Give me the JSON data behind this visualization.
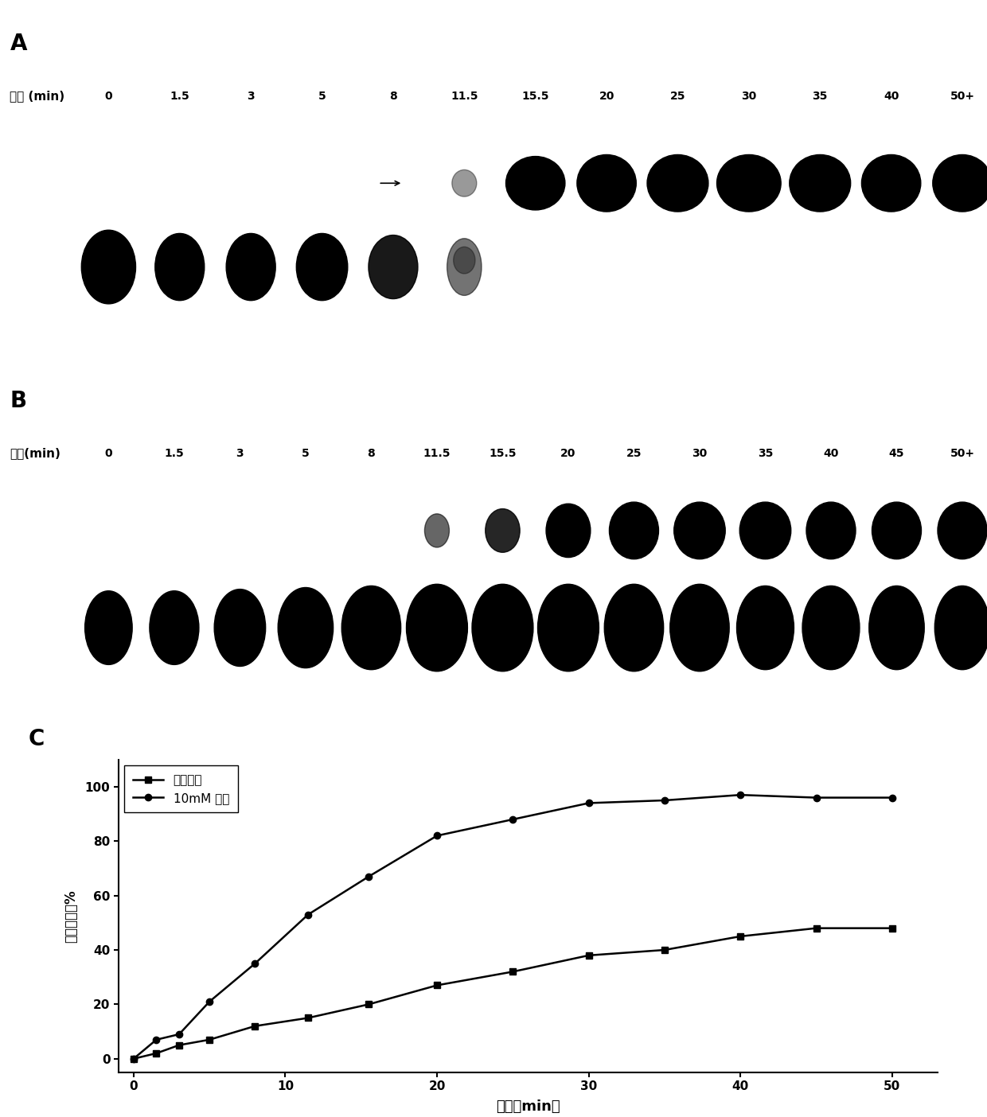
{
  "panel_A_label": "A",
  "panel_B_label": "B",
  "panel_C_label": "C",
  "panel_A_xlabel": "时间 (min)",
  "panel_B_xlabel": "时间(min)",
  "panel_C_xlabel": "时间（min）",
  "panel_C_ylabel": "转化百分率%",
  "line1_label": "不加精胺",
  "line2_label": "10mM 精胺",
  "panel_A_timepoints": [
    "0",
    "1.5",
    "3",
    "5",
    "8",
    "11.5",
    "15.5",
    "20",
    "25",
    "30",
    "35",
    "40",
    "50+"
  ],
  "panel_B_timepoints": [
    "0",
    "1.5",
    "3",
    "5",
    "8",
    "11.5",
    "15.5",
    "20",
    "25",
    "30",
    "35",
    "40",
    "45",
    "50+"
  ],
  "line1_x": [
    0,
    1.5,
    3,
    5,
    8,
    11.5,
    15.5,
    20,
    25,
    30,
    35,
    40,
    45,
    50
  ],
  "line1_y": [
    0,
    2,
    5,
    7,
    12,
    15,
    20,
    27,
    32,
    38,
    40,
    45,
    48,
    48
  ],
  "line2_x": [
    0,
    1.5,
    3,
    5,
    8,
    11.5,
    15.5,
    20,
    25,
    30,
    35,
    40,
    45,
    50
  ],
  "line2_y": [
    0,
    7,
    9,
    21,
    35,
    53,
    67,
    82,
    88,
    94,
    95,
    97,
    96,
    96
  ],
  "ylim_C": [
    -5,
    110
  ],
  "yticks_C": [
    0,
    20,
    40,
    60,
    80,
    100
  ],
  "xlim_C": [
    -1,
    53
  ],
  "xticks_C": [
    0,
    10,
    20,
    30,
    40,
    50
  ],
  "bg_color": "#ffffff",
  "band_color": "#000000",
  "line_color": "#000000"
}
